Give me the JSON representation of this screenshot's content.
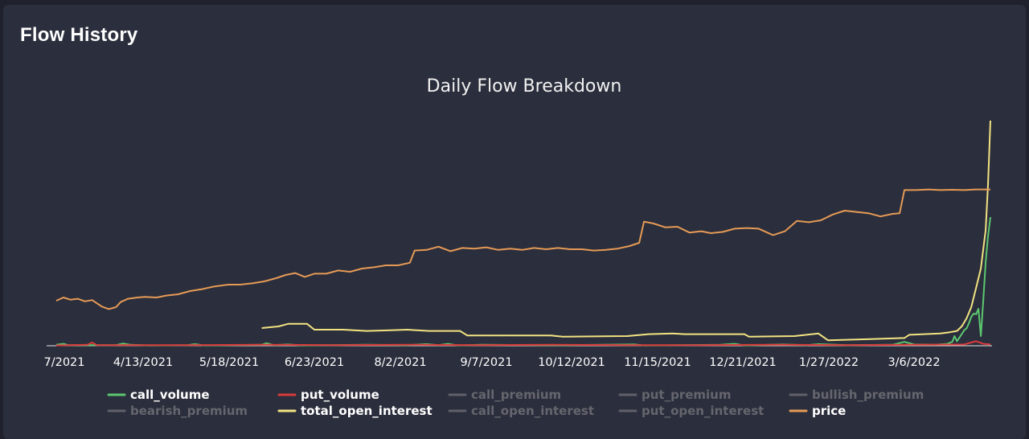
{
  "panel": {
    "title": "Flow History"
  },
  "chart_data": {
    "type": "line",
    "title": "Daily Flow Breakdown",
    "xlabel": "",
    "ylabel": "",
    "x_tick_labels": [
      "7/2021",
      "4/13/2021",
      "5/18/2021",
      "6/23/2021",
      "8/2/2021",
      "9/7/2021",
      "10/12/2021",
      "11/15/2021",
      "12/21/2021",
      "1/27/2022",
      "3/6/2022"
    ],
    "x_range": [
      "2021-03-07",
      "2022-04-02"
    ],
    "y_axis_visible": false,
    "grid": false,
    "legend_position": "bottom",
    "series": [
      {
        "name": "call_volume",
        "color": "#5cc770",
        "visible": true,
        "points": [
          [
            "2021-03-07",
            0.3
          ],
          [
            "2021-03-10",
            0.6
          ],
          [
            "2021-03-12",
            0.2
          ],
          [
            "2021-04-01",
            0.2
          ],
          [
            "2021-04-04",
            0.7
          ],
          [
            "2021-04-07",
            0.3
          ],
          [
            "2021-04-15",
            0.1
          ],
          [
            "2021-05-01",
            0.2
          ],
          [
            "2021-05-04",
            0.5
          ],
          [
            "2021-05-08",
            0.1
          ],
          [
            "2021-06-01",
            0.3
          ],
          [
            "2021-06-03",
            0.8
          ],
          [
            "2021-06-06",
            0.2
          ],
          [
            "2021-06-12",
            0.4
          ],
          [
            "2021-06-18",
            0.1
          ],
          [
            "2021-07-15",
            0.3
          ],
          [
            "2021-08-01",
            0.2
          ],
          [
            "2021-08-09",
            0.5
          ],
          [
            "2021-08-14",
            0.2
          ],
          [
            "2021-08-18",
            0.6
          ],
          [
            "2021-08-22",
            0.1
          ],
          [
            "2021-09-01",
            0.3
          ],
          [
            "2021-10-05",
            0.2
          ],
          [
            "2021-11-04",
            0.4
          ],
          [
            "2021-11-08",
            0.1
          ],
          [
            "2021-12-10",
            0.3
          ],
          [
            "2021-12-16",
            0.6
          ],
          [
            "2021-12-20",
            0.1
          ],
          [
            "2022-01-05",
            0.4
          ],
          [
            "2022-01-15",
            0.2
          ],
          [
            "2022-01-20",
            0.5
          ],
          [
            "2022-02-01",
            0.2
          ],
          [
            "2022-02-20",
            0.3
          ],
          [
            "2022-02-25",
            1.2
          ],
          [
            "2022-03-01",
            0.4
          ],
          [
            "2022-03-10",
            0.3
          ],
          [
            "2022-03-15",
            0.6
          ],
          [
            "2022-03-17",
            1.2
          ],
          [
            "2022-03-18",
            3.0
          ],
          [
            "2022-03-19",
            1.4
          ],
          [
            "2022-03-21",
            3.6
          ],
          [
            "2022-03-22",
            4.8
          ],
          [
            "2022-03-23",
            5.4
          ],
          [
            "2022-03-24",
            7.0
          ],
          [
            "2022-03-25",
            9.0
          ],
          [
            "2022-03-26",
            10.0
          ],
          [
            "2022-03-27",
            9.8
          ],
          [
            "2022-03-28",
            11.5
          ],
          [
            "2022-03-29",
            3.0
          ],
          [
            "2022-03-30",
            14.0
          ],
          [
            "2022-03-31",
            26.0
          ],
          [
            "2022-04-01",
            34.0
          ],
          [
            "2022-04-02",
            40.0
          ]
        ]
      },
      {
        "name": "put_volume",
        "color": "#d93a3a",
        "visible": true,
        "points": [
          [
            "2021-03-07",
            0.1
          ],
          [
            "2021-03-20",
            0.3
          ],
          [
            "2021-03-22",
            1.0
          ],
          [
            "2021-03-24",
            0.2
          ],
          [
            "2021-05-01",
            0.2
          ],
          [
            "2021-06-01",
            0.3
          ],
          [
            "2021-07-01",
            0.2
          ],
          [
            "2021-08-01",
            0.3
          ],
          [
            "2021-09-01",
            0.2
          ],
          [
            "2021-10-01",
            0.3
          ],
          [
            "2021-11-01",
            0.2
          ],
          [
            "2021-12-01",
            0.2
          ],
          [
            "2022-01-01",
            0.3
          ],
          [
            "2022-02-01",
            0.2
          ],
          [
            "2022-03-01",
            0.3
          ],
          [
            "2022-03-22",
            0.4
          ],
          [
            "2022-03-27",
            1.4
          ],
          [
            "2022-03-30",
            0.6
          ],
          [
            "2022-04-02",
            0.4
          ]
        ]
      },
      {
        "name": "call_premium",
        "color": "#5f6068",
        "visible": false,
        "points": []
      },
      {
        "name": "put_premium",
        "color": "#5f6068",
        "visible": false,
        "points": []
      },
      {
        "name": "bullish_premium",
        "color": "#5f6068",
        "visible": false,
        "points": []
      },
      {
        "name": "bearish_premium",
        "color": "#5f6068",
        "visible": false,
        "points": []
      },
      {
        "name": "total_open_interest",
        "color": "#f2e382",
        "visible": true,
        "points": [
          [
            "2021-06-01",
            5.5
          ],
          [
            "2021-06-08",
            6.0
          ],
          [
            "2021-06-12",
            6.8
          ],
          [
            "2021-06-20",
            6.8
          ],
          [
            "2021-06-23",
            5.0
          ],
          [
            "2021-07-05",
            5.0
          ],
          [
            "2021-07-15",
            4.6
          ],
          [
            "2021-07-25",
            4.8
          ],
          [
            "2021-08-01",
            5.0
          ],
          [
            "2021-08-10",
            4.6
          ],
          [
            "2021-08-23",
            4.6
          ],
          [
            "2021-08-26",
            3.2
          ],
          [
            "2021-09-30",
            3.2
          ],
          [
            "2021-10-05",
            2.8
          ],
          [
            "2021-11-01",
            3.0
          ],
          [
            "2021-11-10",
            3.6
          ],
          [
            "2021-11-20",
            3.8
          ],
          [
            "2021-11-25",
            3.6
          ],
          [
            "2021-12-10",
            3.6
          ],
          [
            "2021-12-20",
            3.6
          ],
          [
            "2021-12-22",
            2.8
          ],
          [
            "2022-01-10",
            3.0
          ],
          [
            "2022-01-20",
            3.8
          ],
          [
            "2022-01-24",
            1.7
          ],
          [
            "2022-02-08",
            2.0
          ],
          [
            "2022-02-25",
            2.4
          ],
          [
            "2022-02-27",
            3.4
          ],
          [
            "2022-03-12",
            3.8
          ],
          [
            "2022-03-16",
            4.2
          ],
          [
            "2022-03-19",
            4.6
          ],
          [
            "2022-03-21",
            6.0
          ],
          [
            "2022-03-23",
            8.5
          ],
          [
            "2022-03-25",
            12.0
          ],
          [
            "2022-03-27",
            18.0
          ],
          [
            "2022-03-29",
            24.0
          ],
          [
            "2022-03-31",
            36.0
          ],
          [
            "2022-04-01",
            50.0
          ],
          [
            "2022-04-02",
            70.0
          ]
        ]
      },
      {
        "name": "call_open_interest",
        "color": "#5f6068",
        "visible": false,
        "points": []
      },
      {
        "name": "put_open_interest",
        "color": "#5f6068",
        "visible": false,
        "points": []
      },
      {
        "name": "price",
        "color": "#e59a56",
        "visible": true,
        "points": [
          [
            "2021-03-07",
            14.0
          ],
          [
            "2021-03-10",
            15.0
          ],
          [
            "2021-03-13",
            14.3
          ],
          [
            "2021-03-16",
            14.6
          ],
          [
            "2021-03-19",
            13.8
          ],
          [
            "2021-03-22",
            14.2
          ],
          [
            "2021-03-26",
            12.2
          ],
          [
            "2021-03-29",
            11.4
          ],
          [
            "2021-04-01",
            12.0
          ],
          [
            "2021-04-03",
            13.6
          ],
          [
            "2021-04-06",
            14.6
          ],
          [
            "2021-04-10",
            15.0
          ],
          [
            "2021-04-13",
            15.2
          ],
          [
            "2021-04-18",
            15.0
          ],
          [
            "2021-04-22",
            15.6
          ],
          [
            "2021-04-27",
            16.0
          ],
          [
            "2021-05-02",
            17.0
          ],
          [
            "2021-05-07",
            17.6
          ],
          [
            "2021-05-12",
            18.4
          ],
          [
            "2021-05-18",
            19.0
          ],
          [
            "2021-05-23",
            19.0
          ],
          [
            "2021-05-28",
            19.4
          ],
          [
            "2021-06-02",
            20.0
          ],
          [
            "2021-06-07",
            21.0
          ],
          [
            "2021-06-11",
            22.0
          ],
          [
            "2021-06-15",
            22.6
          ],
          [
            "2021-06-19",
            21.4
          ],
          [
            "2021-06-23",
            22.4
          ],
          [
            "2021-06-28",
            22.4
          ],
          [
            "2021-07-03",
            23.4
          ],
          [
            "2021-07-08",
            23.0
          ],
          [
            "2021-07-13",
            24.0
          ],
          [
            "2021-07-18",
            24.4
          ],
          [
            "2021-07-23",
            25.0
          ],
          [
            "2021-07-28",
            25.0
          ],
          [
            "2021-08-02",
            25.8
          ],
          [
            "2021-08-04",
            29.6
          ],
          [
            "2021-08-09",
            29.8
          ],
          [
            "2021-08-14",
            30.8
          ],
          [
            "2021-08-19",
            29.4
          ],
          [
            "2021-08-24",
            30.4
          ],
          [
            "2021-08-29",
            30.2
          ],
          [
            "2021-09-03",
            30.6
          ],
          [
            "2021-09-08",
            29.8
          ],
          [
            "2021-09-13",
            30.2
          ],
          [
            "2021-09-18",
            29.8
          ],
          [
            "2021-09-23",
            30.4
          ],
          [
            "2021-09-28",
            30.0
          ],
          [
            "2021-10-03",
            30.4
          ],
          [
            "2021-10-08",
            30.0
          ],
          [
            "2021-10-13",
            30.0
          ],
          [
            "2021-10-18",
            29.6
          ],
          [
            "2021-10-23",
            29.8
          ],
          [
            "2021-10-28",
            30.2
          ],
          [
            "2021-11-02",
            31.0
          ],
          [
            "2021-11-06",
            32.0
          ],
          [
            "2021-11-08",
            38.6
          ],
          [
            "2021-11-12",
            38.0
          ],
          [
            "2021-11-17",
            36.8
          ],
          [
            "2021-11-22",
            37.0
          ],
          [
            "2021-11-27",
            35.2
          ],
          [
            "2021-12-02",
            35.6
          ],
          [
            "2021-12-06",
            35.0
          ],
          [
            "2021-12-11",
            35.4
          ],
          [
            "2021-12-16",
            36.4
          ],
          [
            "2021-12-21",
            36.6
          ],
          [
            "2021-12-26",
            36.4
          ],
          [
            "2022-01-01",
            34.4
          ],
          [
            "2022-01-06",
            35.6
          ],
          [
            "2022-01-11",
            38.8
          ],
          [
            "2022-01-16",
            38.4
          ],
          [
            "2022-01-21",
            39.0
          ],
          [
            "2022-01-26",
            40.8
          ],
          [
            "2022-01-31",
            42.0
          ],
          [
            "2022-02-05",
            41.6
          ],
          [
            "2022-02-10",
            41.2
          ],
          [
            "2022-02-15",
            40.2
          ],
          [
            "2022-02-20",
            41.0
          ],
          [
            "2022-02-23",
            41.2
          ],
          [
            "2022-02-25",
            48.4
          ],
          [
            "2022-03-02",
            48.4
          ],
          [
            "2022-03-07",
            48.6
          ],
          [
            "2022-03-12",
            48.4
          ],
          [
            "2022-03-17",
            48.5
          ],
          [
            "2022-03-22",
            48.4
          ],
          [
            "2022-03-27",
            48.6
          ],
          [
            "2022-04-02",
            48.6
          ]
        ]
      }
    ]
  }
}
